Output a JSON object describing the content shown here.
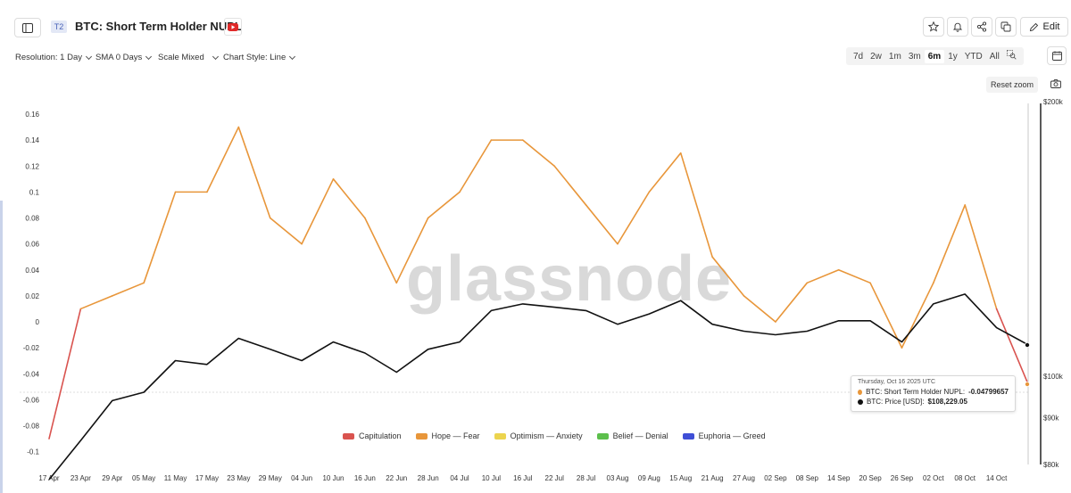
{
  "header": {
    "badge": "T2",
    "title": "BTC: Short Term Holder NUPL",
    "edit_label": "Edit"
  },
  "controls": {
    "resolution": "Resolution: 1 Day",
    "sma": "SMA 0 Days",
    "scale": "Scale Mixed",
    "chart_style": "Chart Style: Line",
    "ranges": [
      "7d",
      "2w",
      "1m",
      "3m",
      "6m",
      "1y",
      "YTD",
      "All"
    ],
    "active_range": "6m",
    "reset_zoom": "Reset zoom"
  },
  "watermark": "glassnode",
  "tooltip": {
    "date": "Thursday, Oct 16 2025 UTC",
    "nupl_label": "BTC: Short Term Holder NUPL: ",
    "nupl_value": "-0.04799657",
    "price_label": "BTC: Price [USD]: ",
    "price_value": "$108,229.05"
  },
  "colors": {
    "capitulation": "#d9534f",
    "hope_fear": "#e8963a",
    "optimism_anxiety": "#ecd44e",
    "belief_denial": "#5cbf4c",
    "euphoria_greed": "#3f4fd6",
    "price": "#111111"
  },
  "chart_data": {
    "type": "line",
    "x": [
      "17 Apr",
      "23 Apr",
      "29 Apr",
      "05 May",
      "11 May",
      "17 May",
      "23 May",
      "29 May",
      "04 Jun",
      "10 Jun",
      "16 Jun",
      "22 Jun",
      "28 Jun",
      "04 Jul",
      "10 Jul",
      "16 Jul",
      "22 Jul",
      "28 Jul",
      "03 Aug",
      "09 Aug",
      "15 Aug",
      "21 Aug",
      "27 Aug",
      "02 Sep",
      "08 Sep",
      "14 Sep",
      "20 Sep",
      "26 Sep",
      "02 Oct",
      "08 Oct",
      "14 Oct",
      "16 Oct"
    ],
    "y_left_ticks": [
      "0.16",
      "0.14",
      "0.12",
      "0.1",
      "0.08",
      "0.06",
      "0.04",
      "0.02",
      "0",
      "-0.02",
      "-0.04",
      "-0.06",
      "-0.08",
      "-0.1"
    ],
    "y_left_range": [
      -0.1,
      0.16
    ],
    "y_right_ticks": [
      "$200k",
      "$100k",
      "$90k",
      "$80k"
    ],
    "y_right_scale": "log",
    "legend": [
      "Capitulation",
      "Hope — Fear",
      "Optimism — Anxiety",
      "Belief — Denial",
      "Euphoria — Greed"
    ],
    "series": [
      {
        "name": "BTC: Short Term Holder NUPL",
        "values": [
          -0.09,
          0.01,
          0.02,
          0.03,
          0.1,
          0.1,
          0.15,
          0.08,
          0.06,
          0.11,
          0.08,
          0.03,
          0.08,
          0.1,
          0.14,
          0.14,
          0.12,
          0.09,
          0.06,
          0.1,
          0.13,
          0.05,
          0.02,
          0.0,
          0.03,
          0.04,
          0.03,
          -0.02,
          0.03,
          0.09,
          0.01,
          -0.048
        ]
      },
      {
        "name": "BTC: Price [USD]",
        "values": [
          77000,
          85000,
          94000,
          96000,
          104000,
          103000,
          110000,
          107000,
          104000,
          109000,
          106000,
          101000,
          107000,
          109000,
          118000,
          120000,
          119000,
          118000,
          114000,
          117000,
          121000,
          114000,
          112000,
          111000,
          112000,
          115000,
          115000,
          109000,
          120000,
          123000,
          113000,
          108229
        ]
      }
    ],
    "grid": false
  }
}
